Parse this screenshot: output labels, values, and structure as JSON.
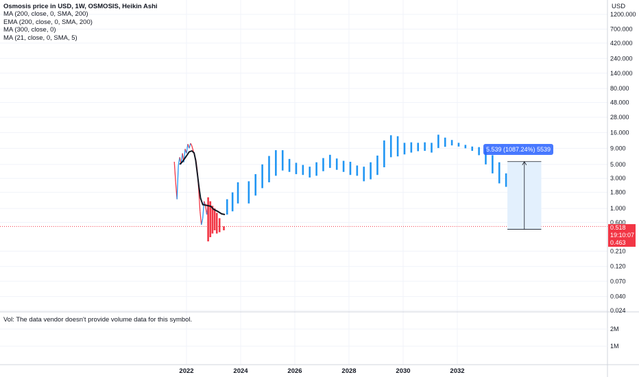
{
  "legend": {
    "title": "Osmosis price in USD, 1W, OSMOSIS, Heikin Ashi",
    "indicators": [
      "MA (200, close, 0, SMA, 200)",
      "EMA (200, close, 0, SMA, 200)",
      "MA (300, close, 0)",
      "MA (21, close, 0, SMA, 5)"
    ]
  },
  "volume_note": "Vol: The data vendor doesn't provide volume data for this symbol.",
  "axis_currency": "USD",
  "last_price": {
    "price": "0.518",
    "countdown": "19:10:07",
    "low_marker": "0.463"
  },
  "measure_label": "5.539 (1087.24%) 5539",
  "colors": {
    "up": "#2196f3",
    "down": "#f23645",
    "ma": "#131722",
    "measure_fill": "#e3f0fd",
    "grid": "#f0f3fa"
  },
  "chart_data": [
    {
      "type": "candlestick",
      "title": "",
      "y_scale": "log",
      "y_ticks": [
        "1200.000",
        "700.000",
        "420.000",
        "240.000",
        "140.000",
        "80.000",
        "48.000",
        "28.000",
        "16.000",
        "9.000",
        "5.000",
        "3.000",
        "1.800",
        "1.000",
        "0.600",
        "0.210",
        "0.120",
        "0.070",
        "0.040",
        "0.024"
      ],
      "x_ticks": [
        "2022",
        "2024",
        "2026",
        "2028",
        "2030",
        "2032"
      ],
      "series": [
        {
          "name": "",
          "color": "#f23645",
          "values": [
            {
              "x": 2022.8,
              "open": 1.5,
              "close": 0.3
            },
            {
              "x": 2022.88,
              "open": 1.3,
              "close": 0.35
            },
            {
              "x": 2022.96,
              "open": 1.1,
              "close": 0.4
            },
            {
              "x": 2023.04,
              "open": 1.0,
              "close": 0.45
            },
            {
              "x": 2023.12,
              "open": 0.85,
              "close": 0.4
            },
            {
              "x": 2023.22,
              "open": 0.7,
              "close": 0.42
            },
            {
              "x": 2023.38,
              "open": 0.52,
              "close": 0.45
            }
          ]
        },
        {
          "name": "",
          "color": "#2196f3",
          "values": [
            {
              "x": 2023.5,
              "open": 0.8,
              "close": 1.4
            },
            {
              "x": 2023.7,
              "open": 0.9,
              "close": 1.8
            },
            {
              "x": 2023.9,
              "open": 1.2,
              "close": 2.6
            },
            {
              "x": 2024.3,
              "open": 1.2,
              "close": 2.7
            },
            {
              "x": 2024.55,
              "open": 1.6,
              "close": 3.5
            },
            {
              "x": 2024.8,
              "open": 2.1,
              "close": 5.0
            },
            {
              "x": 2025.05,
              "open": 2.6,
              "close": 6.8
            },
            {
              "x": 2025.3,
              "open": 3.3,
              "close": 8.4
            },
            {
              "x": 2025.55,
              "open": 4.0,
              "close": 8.4
            },
            {
              "x": 2025.8,
              "open": 3.8,
              "close": 6.1
            },
            {
              "x": 2026.05,
              "open": 3.5,
              "close": 5.3
            },
            {
              "x": 2026.3,
              "open": 3.4,
              "close": 4.9
            },
            {
              "x": 2026.55,
              "open": 3.1,
              "close": 4.6
            },
            {
              "x": 2026.8,
              "open": 3.3,
              "close": 5.4
            },
            {
              "x": 2027.05,
              "open": 3.9,
              "close": 6.3
            },
            {
              "x": 2027.3,
              "open": 4.4,
              "close": 7.1
            },
            {
              "x": 2027.55,
              "open": 4.1,
              "close": 6.2
            },
            {
              "x": 2027.8,
              "open": 3.8,
              "close": 5.7
            },
            {
              "x": 2028.05,
              "open": 3.4,
              "close": 5.5
            },
            {
              "x": 2028.3,
              "open": 3.3,
              "close": 4.8
            },
            {
              "x": 2028.55,
              "open": 2.7,
              "close": 4.6
            },
            {
              "x": 2028.8,
              "open": 2.9,
              "close": 5.4
            },
            {
              "x": 2029.05,
              "open": 3.4,
              "close": 6.9
            },
            {
              "x": 2029.3,
              "open": 4.5,
              "close": 12.0
            },
            {
              "x": 2029.55,
              "open": 6.5,
              "close": 14.5
            },
            {
              "x": 2029.8,
              "open": 6.7,
              "close": 14.0
            },
            {
              "x": 2030.05,
              "open": 7.2,
              "close": 11.0
            },
            {
              "x": 2030.3,
              "open": 7.7,
              "close": 11.2
            },
            {
              "x": 2030.55,
              "open": 8.1,
              "close": 11.0
            },
            {
              "x": 2030.8,
              "open": 8.2,
              "close": 11.2
            },
            {
              "x": 2031.05,
              "open": 7.7,
              "close": 11.0
            },
            {
              "x": 2031.3,
              "open": 9.1,
              "close": 14.8
            },
            {
              "x": 2031.55,
              "open": 9.5,
              "close": 13.3
            },
            {
              "x": 2031.8,
              "open": 10.0,
              "close": 12.2
            },
            {
              "x": 2032.05,
              "open": 9.6,
              "close": 11.0
            },
            {
              "x": 2032.3,
              "open": 9.0,
              "close": 10.2
            },
            {
              "x": 2032.55,
              "open": 8.2,
              "close": 9.6
            },
            {
              "x": 2032.8,
              "open": 7.0,
              "close": 9.4
            },
            {
              "x": 2033.05,
              "open": 5.0,
              "close": 8.9
            },
            {
              "x": 2033.3,
              "open": 3.6,
              "close": 7.0
            },
            {
              "x": 2033.55,
              "open": 2.5,
              "close": 5.4
            },
            {
              "x": 2033.8,
              "open": 2.2,
              "close": 3.6
            }
          ]
        }
      ],
      "history_2022": [
        {
          "x": 2021.55,
          "value": 5.5
        },
        {
          "x": 2021.6,
          "value": 2.6
        },
        {
          "x": 2021.65,
          "value": 1.4
        },
        {
          "x": 2021.7,
          "value": 4.8
        },
        {
          "x": 2021.75,
          "value": 6.5
        },
        {
          "x": 2021.8,
          "value": 5.0
        },
        {
          "x": 2021.85,
          "value": 7.5
        },
        {
          "x": 2021.9,
          "value": 5.4
        },
        {
          "x": 2021.95,
          "value": 8.8
        },
        {
          "x": 2022.0,
          "value": 7.5
        },
        {
          "x": 2022.05,
          "value": 10.5
        },
        {
          "x": 2022.1,
          "value": 9.0
        },
        {
          "x": 2022.15,
          "value": 10.8
        },
        {
          "x": 2022.2,
          "value": 9.8
        },
        {
          "x": 2022.25,
          "value": 8.2
        },
        {
          "x": 2022.3,
          "value": 7.0
        },
        {
          "x": 2022.35,
          "value": 5.8
        },
        {
          "x": 2022.4,
          "value": 4.0
        },
        {
          "x": 2022.45,
          "value": 2.0
        },
        {
          "x": 2022.5,
          "value": 0.9
        },
        {
          "x": 2022.55,
          "value": 0.55
        },
        {
          "x": 2022.6,
          "value": 0.7
        },
        {
          "x": 2022.65,
          "value": 1.3
        },
        {
          "x": 2022.7,
          "value": 1.1
        },
        {
          "x": 2022.75,
          "value": 0.8
        },
        {
          "x": 2022.8,
          "value": 1.2
        }
      ],
      "moving_average": [
        {
          "x": 2021.75,
          "value": 5.0
        },
        {
          "x": 2021.85,
          "value": 5.5
        },
        {
          "x": 2022.0,
          "value": 6.8
        },
        {
          "x": 2022.1,
          "value": 7.9
        },
        {
          "x": 2022.2,
          "value": 8.2
        },
        {
          "x": 2022.28,
          "value": 7.6
        },
        {
          "x": 2022.34,
          "value": 5.8
        },
        {
          "x": 2022.4,
          "value": 3.6
        },
        {
          "x": 2022.46,
          "value": 2.2
        },
        {
          "x": 2022.52,
          "value": 1.45
        },
        {
          "x": 2022.6,
          "value": 1.15
        },
        {
          "x": 2022.75,
          "value": 1.12
        },
        {
          "x": 2022.9,
          "value": 1.08
        },
        {
          "x": 2023.0,
          "value": 0.97
        },
        {
          "x": 2023.15,
          "value": 0.9
        },
        {
          "x": 2023.3,
          "value": 0.82
        },
        {
          "x": 2023.42,
          "value": 0.8
        }
      ],
      "current_price": 0.518,
      "measure": {
        "from_x": 2033.85,
        "to_x": 2035.1,
        "from": 0.466,
        "to": 5.539
      }
    },
    {
      "type": "bar",
      "title": "Vol",
      "y_ticks": [
        "2M",
        "1M"
      ],
      "values": []
    }
  ]
}
